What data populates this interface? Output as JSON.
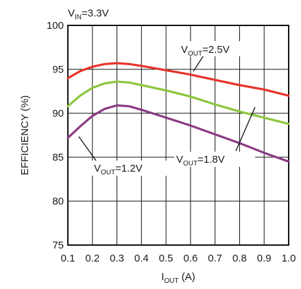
{
  "chart_data": {
    "type": "line",
    "header": {
      "main": "V",
      "sub": "IN",
      "rest": "=3.3V"
    },
    "xlabel": {
      "main": "I",
      "sub": "OUT",
      "rest": " (A)"
    },
    "ylabel": "EFFICIENCY (%)",
    "xlim": [
      0.1,
      1.0
    ],
    "ylim": [
      75,
      100
    ],
    "xticks": [
      0.1,
      0.2,
      0.3,
      0.4,
      0.5,
      0.6,
      0.7,
      0.8,
      0.9,
      1.0
    ],
    "yticks": [
      75,
      80,
      85,
      90,
      95,
      100
    ],
    "xtick_labels": [
      "0.1",
      "0.2",
      "0.3",
      "0.4",
      "0.5",
      "0.6",
      "0.7",
      "0.8",
      "0.9",
      "1.0"
    ],
    "ytick_labels": [
      "75",
      "80",
      "85",
      "90",
      "95",
      "100"
    ],
    "grid": true,
    "series": [
      {
        "annotation": {
          "main": "V",
          "sub": "OUT",
          "rest": "=2.5V"
        },
        "color": "#e8332a",
        "x": [
          0.1,
          0.15,
          0.2,
          0.25,
          0.3,
          0.35,
          0.4,
          0.5,
          0.6,
          0.7,
          0.8,
          0.9,
          1.0
        ],
        "y": [
          94.0,
          94.8,
          95.3,
          95.6,
          95.7,
          95.6,
          95.4,
          94.9,
          94.4,
          93.8,
          93.2,
          92.7,
          92.0
        ]
      },
      {
        "annotation": {
          "main": "V",
          "sub": "OUT",
          "rest": "=1.8V"
        },
        "color": "#8cc63e",
        "x": [
          0.1,
          0.15,
          0.2,
          0.25,
          0.3,
          0.35,
          0.4,
          0.5,
          0.6,
          0.7,
          0.8,
          0.9,
          1.0
        ],
        "y": [
          90.8,
          92.0,
          92.9,
          93.4,
          93.6,
          93.5,
          93.2,
          92.6,
          91.9,
          91.0,
          90.2,
          89.5,
          88.8
        ]
      },
      {
        "annotation": {
          "main": "V",
          "sub": "OUT",
          "rest": "=1.2V"
        },
        "color": "#8b3a82",
        "x": [
          0.1,
          0.15,
          0.2,
          0.25,
          0.3,
          0.35,
          0.4,
          0.5,
          0.6,
          0.7,
          0.8,
          0.9,
          1.0
        ],
        "y": [
          87.2,
          88.5,
          89.7,
          90.5,
          90.9,
          90.8,
          90.4,
          89.5,
          88.6,
          87.6,
          86.6,
          85.5,
          84.5
        ]
      }
    ]
  }
}
